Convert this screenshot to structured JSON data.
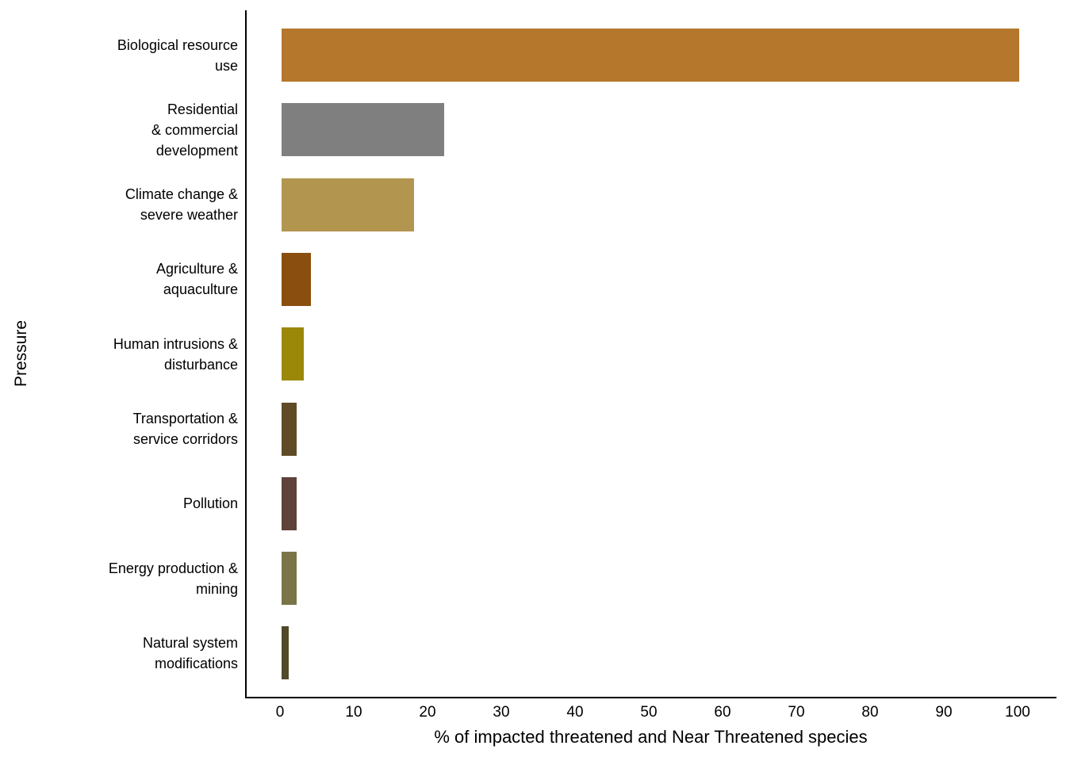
{
  "chart_data": {
    "type": "bar",
    "orientation": "horizontal",
    "title": "",
    "xlabel": "% of impacted threatened and Near Threatened species",
    "ylabel": "Pressure",
    "xlim": [
      0,
      100
    ],
    "x_ticks": [
      0,
      10,
      20,
      30,
      40,
      50,
      60,
      70,
      80,
      90,
      100
    ],
    "grid": false,
    "legend": "none",
    "categories": [
      "Biological resource use",
      "Residential & commercial development",
      "Climate change & severe weather",
      "Agriculture & aquaculture",
      "Human intrusions & disturbance",
      "Transportation & service corridors",
      "Pollution",
      "Energy production & mining",
      "Natural system modifications"
    ],
    "category_label_lines": [
      [
        "Biological resource",
        "use"
      ],
      [
        "Residential",
        "& commercial",
        "development"
      ],
      [
        "Climate change &",
        "severe weather"
      ],
      [
        "Agriculture &",
        "aquaculture"
      ],
      [
        "Human intrusions &",
        "disturbance"
      ],
      [
        "Transportation &",
        "service corridors"
      ],
      [
        "Pollution"
      ],
      [
        "Energy production &",
        "mining"
      ],
      [
        "Natural system",
        "modifications"
      ]
    ],
    "values": [
      100,
      22,
      18,
      4,
      3,
      2,
      2,
      2,
      1
    ],
    "bar_colors": [
      "#B5772B",
      "#7F7F7F",
      "#B2954F",
      "#8A4E0F",
      "#9C8808",
      "#5F4B26",
      "#5F4239",
      "#7A7547",
      "#504A2A"
    ],
    "axis_color": "#000000",
    "text_color": "#000000",
    "background_color": "#FFFFFF"
  }
}
